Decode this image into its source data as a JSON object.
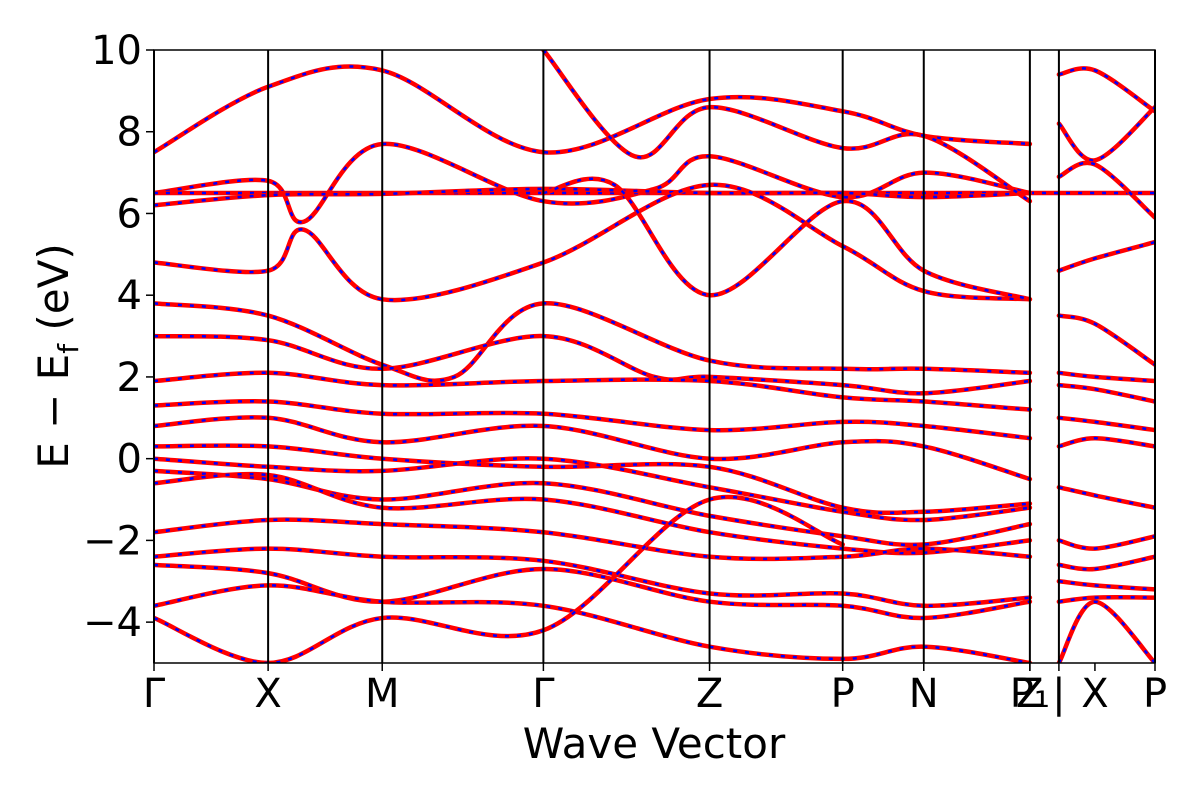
{
  "chart_data": {
    "type": "line",
    "xlabel": "Wave Vector",
    "ylabel": "E − E_f (eV)",
    "ylabel_main": "E − E",
    "ylabel_sub": "f",
    "ylabel_tail": " (eV)",
    "ylim": [
      -5,
      10
    ],
    "yticks": [
      -4,
      -2,
      0,
      2,
      4,
      6,
      8,
      10
    ],
    "ytick_labels": [
      "−4",
      "−2",
      "0",
      "2",
      "4",
      "6",
      "8",
      "10"
    ],
    "xlim": [
      0,
      1.0
    ],
    "kpoints": [
      {
        "label": "Γ",
        "x": 0.0
      },
      {
        "label": "X",
        "x": 0.114
      },
      {
        "label": "M",
        "x": 0.228
      },
      {
        "label": "Γ",
        "x": 0.389
      },
      {
        "label": "Z",
        "x": 0.555
      },
      {
        "label": "P",
        "x": 0.688
      },
      {
        "label": "N",
        "x": 0.769
      },
      {
        "label": "P₁",
        "x": 0.875
      },
      {
        "label": "Z",
        "x": 0.875
      },
      {
        "label": "|",
        "x": 0.904
      },
      {
        "label": "X",
        "x": 0.94
      },
      {
        "label": "P",
        "x": 1.0
      }
    ],
    "vlines": [
      0.0,
      0.114,
      0.228,
      0.389,
      0.555,
      0.688,
      0.769,
      0.875,
      0.904,
      1.0
    ],
    "line_styles": {
      "solid_color": "#ff0000",
      "dashed_color": "#0000ff"
    },
    "series": [
      {
        "x": [
          0,
          0.114,
          0.228,
          0.389,
          0.555,
          0.688,
          0.769,
          0.875
        ],
        "y": [
          7.5,
          9.1,
          9.5,
          7.5,
          8.8,
          8.5,
          7.9,
          7.7
        ]
      },
      {
        "x": [
          0,
          0.114,
          0.15,
          0.228,
          0.389,
          0.5,
          0.555,
          0.688,
          0.769,
          0.875
        ],
        "y": [
          6.5,
          6.8,
          5.8,
          7.7,
          6.3,
          6.6,
          7.4,
          6.4,
          7.0,
          6.5
        ]
      },
      {
        "x": [
          0,
          0.389,
          0.555,
          0.688,
          0.875,
          1.0
        ],
        "y": [
          6.5,
          6.5,
          6.5,
          6.5,
          6.5,
          6.5
        ]
      },
      {
        "x": [
          0,
          0.114,
          0.228,
          0.389,
          0.555,
          0.688,
          0.769,
          0.875
        ],
        "y": [
          6.2,
          6.45,
          6.48,
          6.6,
          6.5,
          6.5,
          6.4,
          6.5
        ]
      },
      {
        "x": [
          0,
          0.114,
          0.15,
          0.228,
          0.389,
          0.555,
          0.688,
          0.769,
          0.875
        ],
        "y": [
          4.8,
          4.6,
          5.6,
          3.9,
          4.8,
          6.7,
          5.2,
          4.1,
          3.9
        ]
      },
      {
        "x": [
          0,
          0.114,
          0.228,
          0.3,
          0.389,
          0.555,
          0.688,
          0.769,
          0.875
        ],
        "y": [
          3.8,
          3.5,
          2.3,
          2.0,
          3.8,
          2.4,
          2.2,
          2.2,
          2.1
        ]
      },
      {
        "x": [
          0,
          0.114,
          0.228,
          0.389,
          0.5,
          0.555,
          0.688,
          0.769,
          0.875
        ],
        "y": [
          3.0,
          2.9,
          2.2,
          3.0,
          2.0,
          2.0,
          1.8,
          1.6,
          1.9
        ]
      },
      {
        "x": [
          0,
          0.114,
          0.228,
          0.389,
          0.555,
          0.688,
          0.769,
          0.875
        ],
        "y": [
          1.9,
          2.1,
          1.8,
          1.9,
          1.9,
          1.5,
          1.4,
          1.2
        ]
      },
      {
        "x": [
          0,
          0.114,
          0.228,
          0.389,
          0.555,
          0.688,
          0.769,
          0.875
        ],
        "y": [
          1.3,
          1.4,
          1.1,
          1.1,
          0.7,
          0.9,
          0.8,
          0.5
        ]
      },
      {
        "x": [
          0,
          0.114,
          0.228,
          0.389,
          0.555,
          0.688,
          0.769,
          0.875
        ],
        "y": [
          0.8,
          1.0,
          0.4,
          0.8,
          0.0,
          0.4,
          0.3,
          -0.5
        ]
      },
      {
        "x": [
          0,
          0.114,
          0.228,
          0.389,
          0.555,
          0.688,
          0.769,
          0.875
        ],
        "y": [
          0.3,
          0.3,
          0.0,
          -0.2,
          -0.2,
          -1.2,
          -1.3,
          -1.1
        ]
      },
      {
        "x": [
          0,
          0.114,
          0.228,
          0.389,
          0.555,
          0.688,
          0.769,
          0.875
        ],
        "y": [
          0.0,
          -0.2,
          -0.3,
          0.0,
          -0.7,
          -1.3,
          -1.5,
          -1.2
        ]
      },
      {
        "x": [
          0,
          0.114,
          0.228,
          0.389,
          0.555,
          0.688,
          0.769,
          0.875
        ],
        "y": [
          -0.3,
          -0.5,
          -1.0,
          -0.6,
          -1.4,
          -1.9,
          -2.1,
          -1.6
        ]
      },
      {
        "x": [
          0,
          0.114,
          0.228,
          0.389,
          0.555,
          0.688,
          0.769,
          0.875
        ],
        "y": [
          -0.6,
          -0.4,
          -1.2,
          -1.0,
          -1.8,
          -2.2,
          -2.3,
          -2.0
        ]
      },
      {
        "x": [
          0,
          0.114,
          0.228,
          0.389,
          0.555,
          0.688,
          0.769,
          0.875
        ],
        "y": [
          -1.8,
          -1.5,
          -1.6,
          -1.8,
          -2.4,
          -2.4,
          -2.2,
          -2.4
        ]
      },
      {
        "x": [
          0,
          0.114,
          0.228,
          0.389,
          0.555,
          0.688,
          0.769,
          0.875
        ],
        "y": [
          -2.4,
          -2.2,
          -2.4,
          -2.5,
          -3.3,
          -3.3,
          -3.6,
          -3.4
        ]
      },
      {
        "x": [
          0,
          0.114,
          0.228,
          0.389,
          0.555,
          0.688,
          0.769,
          0.875
        ],
        "y": [
          -2.6,
          -2.8,
          -3.5,
          -2.7,
          -3.5,
          -3.6,
          -3.9,
          -3.5
        ]
      },
      {
        "x": [
          0,
          0.114,
          0.228,
          0.389,
          0.555,
          0.688,
          0.769,
          0.875
        ],
        "y": [
          -3.6,
          -3.1,
          -3.5,
          -3.6,
          -4.6,
          -4.9,
          -4.6,
          -5.0
        ]
      },
      {
        "x": [
          0,
          0.114,
          0.228,
          0.389,
          0.555,
          0.688
        ],
        "y": [
          -3.9,
          -5.0,
          -3.9,
          -4.2,
          -1.0,
          -2.1
        ]
      },
      {
        "x": [
          0.389,
          0.48,
          0.555,
          0.688,
          0.769,
          0.875
        ],
        "y": [
          10.0,
          7.4,
          8.6,
          7.6,
          7.9,
          6.3
        ]
      },
      {
        "x": [
          0.389,
          0.46,
          0.555,
          0.688,
          0.769,
          0.875
        ],
        "y": [
          6.5,
          6.7,
          4.0,
          6.3,
          4.6,
          3.9
        ]
      },
      {
        "x": [
          0.904,
          0.94,
          1.0
        ],
        "y": [
          9.4,
          9.5,
          8.5
        ]
      },
      {
        "x": [
          0.904,
          0.94,
          1.0
        ],
        "y": [
          8.2,
          7.3,
          8.6
        ]
      },
      {
        "x": [
          0.904,
          0.94,
          1.0
        ],
        "y": [
          6.9,
          7.2,
          5.9
        ]
      },
      {
        "x": [
          0.904,
          0.94,
          1.0
        ],
        "y": [
          4.6,
          4.9,
          5.3
        ]
      },
      {
        "x": [
          0.904,
          0.94,
          1.0
        ],
        "y": [
          3.5,
          3.3,
          2.3
        ]
      },
      {
        "x": [
          0.904,
          0.94,
          1.0
        ],
        "y": [
          2.1,
          2.0,
          1.9
        ]
      },
      {
        "x": [
          0.904,
          0.94,
          1.0
        ],
        "y": [
          1.8,
          1.7,
          1.4
        ]
      },
      {
        "x": [
          0.904,
          0.94,
          1.0
        ],
        "y": [
          1.0,
          0.9,
          0.7
        ]
      },
      {
        "x": [
          0.904,
          0.94,
          1.0
        ],
        "y": [
          0.3,
          0.5,
          0.3
        ]
      },
      {
        "x": [
          0.904,
          0.94,
          1.0
        ],
        "y": [
          -0.7,
          -0.9,
          -1.2
        ]
      },
      {
        "x": [
          0.904,
          0.94,
          1.0
        ],
        "y": [
          -2.0,
          -2.2,
          -1.9
        ]
      },
      {
        "x": [
          0.904,
          0.94,
          1.0
        ],
        "y": [
          -2.6,
          -2.7,
          -2.4
        ]
      },
      {
        "x": [
          0.904,
          0.94,
          1.0
        ],
        "y": [
          -3.0,
          -3.1,
          -3.2
        ]
      },
      {
        "x": [
          0.904,
          0.94,
          1.0
        ],
        "y": [
          -3.5,
          -3.4,
          -3.4
        ]
      },
      {
        "x": [
          0.904,
          0.94,
          1.0
        ],
        "y": [
          -5.0,
          -3.5,
          -5.0
        ]
      }
    ]
  }
}
